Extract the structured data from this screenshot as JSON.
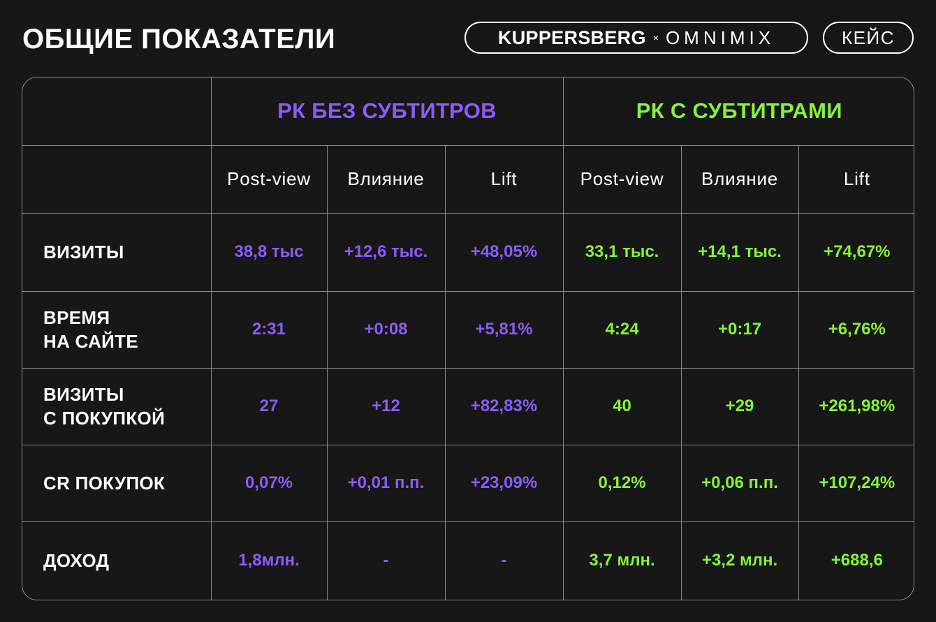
{
  "header": {
    "title": "ОБЩИЕ ПОКАЗАТЕЛИ",
    "brand_primary": "KUPPERSBERG",
    "brand_separator": "×",
    "brand_secondary": "OMNIMIX",
    "case_label": "КЕЙС"
  },
  "colors": {
    "background": "#171717",
    "group_a": "#8b5cf6",
    "group_b": "#86f23c",
    "grid": "#8a8a8a"
  },
  "table": {
    "groups": [
      "РК БЕЗ СУБТИТРОВ",
      "РК С СУБТИТРАМИ"
    ],
    "columns": [
      "Post-view",
      "Влияние",
      "Lift",
      "Post-view",
      "Влияние",
      "Lift"
    ],
    "rows": [
      {
        "label": "ВИЗИТЫ",
        "values": [
          "38,8 тыс",
          "+12,6 тыс.",
          "+48,05%",
          "33,1 тыс.",
          "+14,1 тыс.",
          "+74,67%"
        ]
      },
      {
        "label": "ВРЕМЯ\nНА САЙТЕ",
        "values": [
          "2:31",
          "+0:08",
          "+5,81%",
          "4:24",
          "+0:17",
          "+6,76%"
        ]
      },
      {
        "label": "ВИЗИТЫ\nС ПОКУПКОЙ",
        "values": [
          "27",
          "+12",
          "+82,83%",
          "40",
          "+29",
          "+261,98%"
        ]
      },
      {
        "label": "CR ПОКУПОК",
        "values": [
          "0,07%",
          "+0,01 п.п.",
          "+23,09%",
          "0,12%",
          "+0,06 п.п.",
          "+107,24%"
        ]
      },
      {
        "label": "ДОХОД",
        "values": [
          "1,8млн.",
          "-",
          "-",
          "3,7 млн.",
          "+3,2 млн.",
          "+688,6"
        ]
      }
    ]
  }
}
